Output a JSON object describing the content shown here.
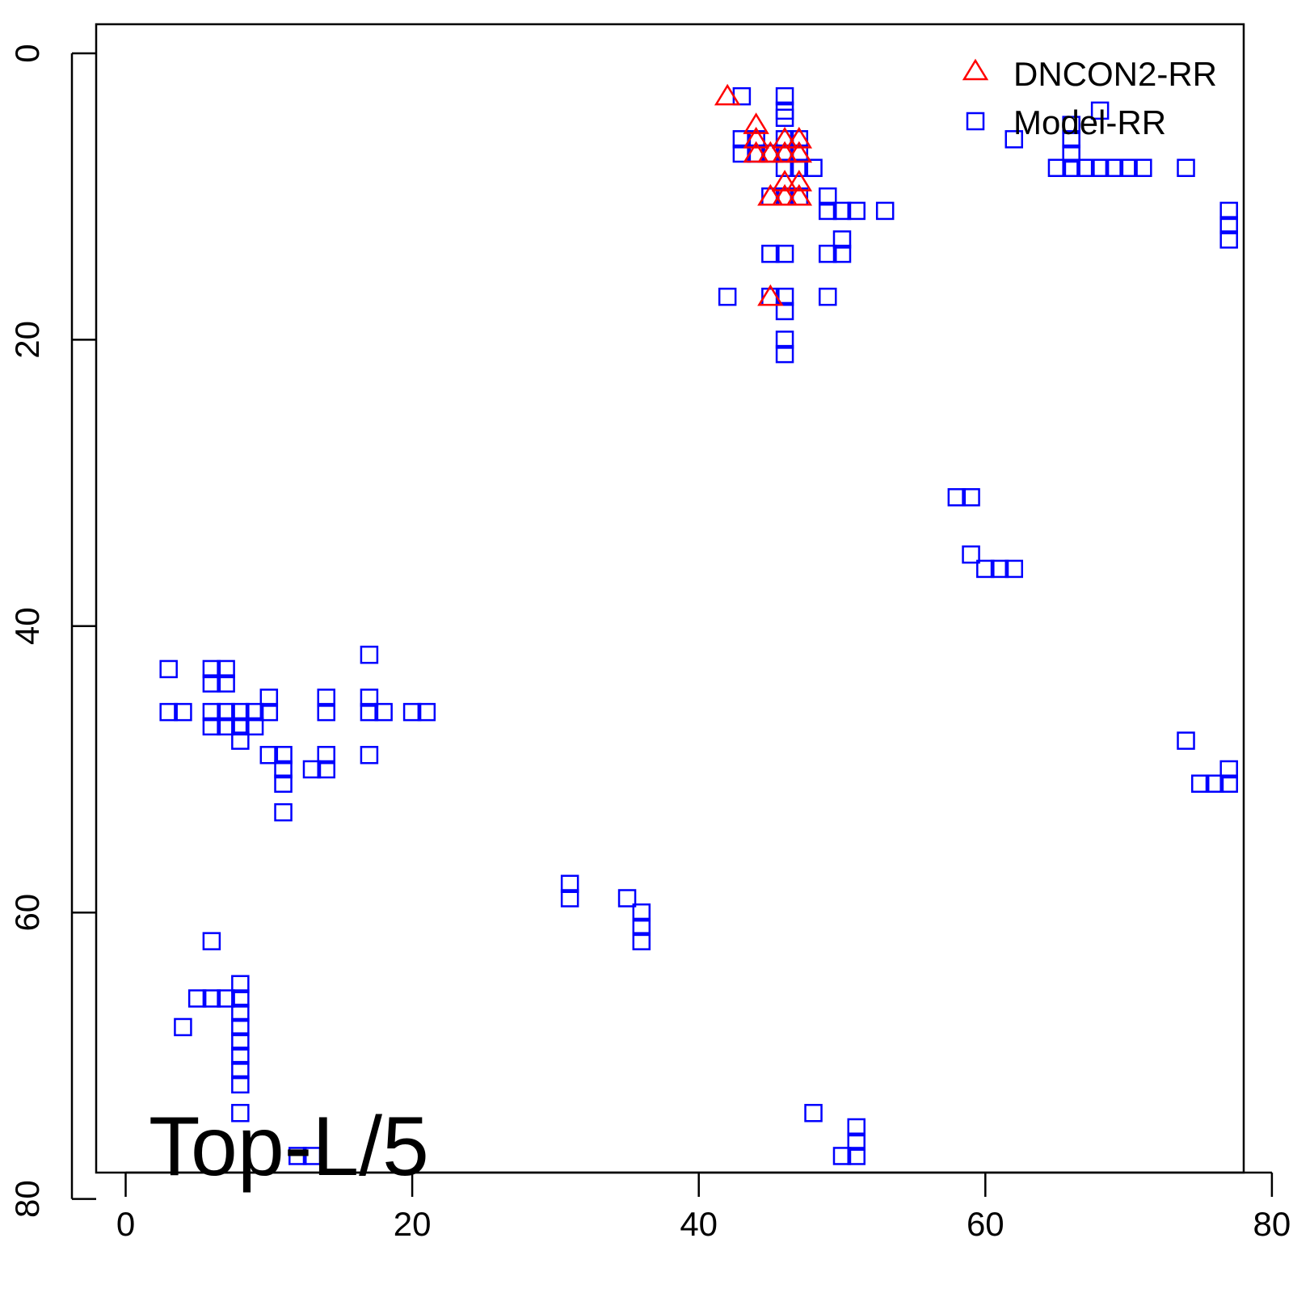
{
  "chart_data": {
    "type": "scatter",
    "title": "",
    "xlabel": "",
    "ylabel": "",
    "xlim": [
      -2,
      80
    ],
    "ylim": [
      80,
      -2
    ],
    "y_inverted": true,
    "x_ticks": [
      0,
      20,
      40,
      60,
      80
    ],
    "y_ticks": [
      0,
      20,
      40,
      60,
      80
    ],
    "x_tick_labels": [
      "0",
      "20",
      "40",
      "60",
      "80"
    ],
    "y_tick_labels": [
      "0",
      "20",
      "40",
      "60",
      "80"
    ],
    "annotation": "Top-L/5",
    "legend": {
      "position": "top-right",
      "entries": [
        {
          "label": "DNCON2-RR",
          "marker": "triangle",
          "color": "#ff0000"
        },
        {
          "label": "Model-RR",
          "marker": "square",
          "color": "#0000ff"
        }
      ]
    },
    "series": [
      {
        "name": "Model-RR",
        "marker": "square",
        "color": "#0000ff",
        "points": [
          [
            43,
            3
          ],
          [
            46,
            3
          ],
          [
            46,
            4
          ],
          [
            46,
            4.5
          ],
          [
            68,
            4
          ],
          [
            43,
            6
          ],
          [
            44,
            6
          ],
          [
            46,
            6
          ],
          [
            47,
            6
          ],
          [
            66,
            5
          ],
          [
            66,
            6
          ],
          [
            62,
            6
          ],
          [
            43,
            7
          ],
          [
            44,
            7
          ],
          [
            45,
            7
          ],
          [
            46,
            7
          ],
          [
            47,
            7
          ],
          [
            66,
            7
          ],
          [
            46,
            8
          ],
          [
            47,
            8
          ],
          [
            48,
            8
          ],
          [
            65,
            8
          ],
          [
            66,
            8
          ],
          [
            67,
            8
          ],
          [
            68,
            8
          ],
          [
            69,
            8
          ],
          [
            70,
            8
          ],
          [
            71,
            8
          ],
          [
            74,
            8
          ],
          [
            45,
            10
          ],
          [
            46,
            10
          ],
          [
            47,
            10
          ],
          [
            49,
            10
          ],
          [
            49,
            11
          ],
          [
            50,
            11
          ],
          [
            51,
            11
          ],
          [
            53,
            11
          ],
          [
            77,
            11
          ],
          [
            77,
            12
          ],
          [
            77,
            13
          ],
          [
            50,
            13
          ],
          [
            45,
            14
          ],
          [
            46,
            14
          ],
          [
            49,
            14
          ],
          [
            50,
            14
          ],
          [
            42,
            17
          ],
          [
            45,
            17
          ],
          [
            46,
            17
          ],
          [
            49,
            17
          ],
          [
            46,
            18
          ],
          [
            46,
            20
          ],
          [
            46,
            21
          ],
          [
            58,
            31
          ],
          [
            59,
            31
          ],
          [
            59,
            35
          ],
          [
            60,
            36
          ],
          [
            61,
            36
          ],
          [
            62,
            36
          ],
          [
            3,
            43
          ],
          [
            6,
            43
          ],
          [
            7,
            43
          ],
          [
            6,
            44
          ],
          [
            7,
            44
          ],
          [
            17,
            42
          ],
          [
            3,
            46
          ],
          [
            4,
            46
          ],
          [
            6,
            46
          ],
          [
            7,
            46
          ],
          [
            8,
            46
          ],
          [
            9,
            46
          ],
          [
            10,
            46
          ],
          [
            14,
            46
          ],
          [
            17,
            46
          ],
          [
            18,
            46
          ],
          [
            20,
            46
          ],
          [
            21,
            46
          ],
          [
            10,
            45
          ],
          [
            14,
            45
          ],
          [
            17,
            45
          ],
          [
            6,
            47
          ],
          [
            7,
            47
          ],
          [
            8,
            47
          ],
          [
            9,
            47
          ],
          [
            8,
            48
          ],
          [
            74,
            48
          ],
          [
            10,
            49
          ],
          [
            11,
            49
          ],
          [
            14,
            49
          ],
          [
            17,
            49
          ],
          [
            11,
            50
          ],
          [
            13,
            50
          ],
          [
            14,
            50
          ],
          [
            77,
            50
          ],
          [
            11,
            51
          ],
          [
            75,
            51
          ],
          [
            76,
            51
          ],
          [
            77,
            51
          ],
          [
            11,
            53
          ],
          [
            31,
            58
          ],
          [
            31,
            59
          ],
          [
            35,
            59
          ],
          [
            36,
            60
          ],
          [
            36,
            61
          ],
          [
            36,
            62
          ],
          [
            6,
            62
          ],
          [
            8,
            65
          ],
          [
            5,
            66
          ],
          [
            6,
            66
          ],
          [
            7,
            66
          ],
          [
            8,
            66
          ],
          [
            8,
            67
          ],
          [
            8,
            68
          ],
          [
            4,
            68
          ],
          [
            8,
            69
          ],
          [
            8,
            70
          ],
          [
            8,
            71
          ],
          [
            8,
            72
          ],
          [
            8,
            74
          ],
          [
            48,
            74
          ],
          [
            51,
            75
          ],
          [
            51,
            76
          ],
          [
            51,
            77
          ],
          [
            12,
            77
          ],
          [
            13,
            77
          ],
          [
            50,
            77
          ]
        ]
      },
      {
        "name": "DNCON2-RR",
        "marker": "triangle",
        "color": "#ff0000",
        "points": [
          [
            42,
            3
          ],
          [
            44,
            5
          ],
          [
            44,
            6
          ],
          [
            46,
            6
          ],
          [
            47,
            6
          ],
          [
            44,
            7
          ],
          [
            45,
            7
          ],
          [
            46,
            7
          ],
          [
            47,
            7
          ],
          [
            46,
            9
          ],
          [
            47,
            9
          ],
          [
            45,
            10
          ],
          [
            46,
            10
          ],
          [
            47,
            10
          ],
          [
            45,
            17
          ]
        ]
      }
    ]
  }
}
